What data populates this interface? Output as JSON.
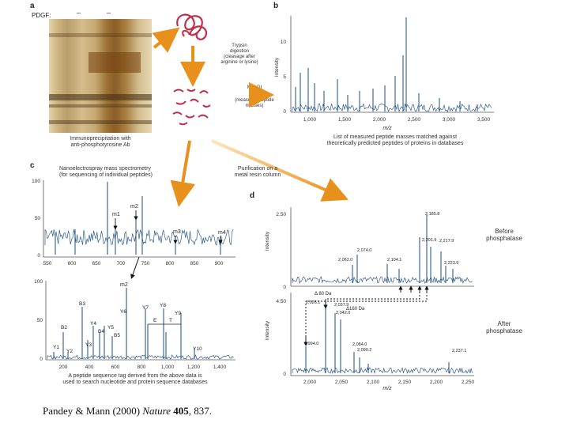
{
  "panel_a": {
    "letter": "a",
    "gel_label": "PDGF:",
    "lane1_sign": "–",
    "lane2_sign": "–",
    "caption_line1": "Immunoprecipitation with",
    "caption_line2": "anti-phosphotyrosine Ab",
    "step_trypsin": [
      "Trypsin",
      "digestion",
      "(cleavage after",
      "arginine or lysine)"
    ],
    "step_maldi_title": "MALDI",
    "step_maldi": [
      "(measures peptide",
      "masses)"
    ]
  },
  "panel_b": {
    "letter": "b",
    "y_ticks": [
      "10",
      "5",
      "0"
    ],
    "x_ticks": [
      "1,000",
      "1,500",
      "2,000",
      "2,500",
      "3,000",
      "3,500"
    ],
    "ylabel": "Intensity",
    "xlabel": "m/z",
    "caption_line1": "List of measured peptide masses matched against",
    "caption_line2": "theoretically predicted peptides of proteins in databases"
  },
  "panel_c": {
    "letter": "c",
    "nano_line1": "Nanoelectrospray mass spectrometry",
    "nano_line2": "(for sequencing of individual peptides)",
    "top_y_ticks": [
      "100",
      "50",
      "0"
    ],
    "top_x_ticks": [
      "550",
      "600",
      "650",
      "700",
      "750",
      "800",
      "850",
      "900"
    ],
    "top_markers": [
      "m1",
      "m2",
      "m3",
      "m4"
    ],
    "bottom_y_ticks": [
      "100",
      "50",
      "0"
    ],
    "bottom_x_ticks": [
      "200",
      "400",
      "600",
      "800",
      "1,000",
      "1,200",
      "1,400"
    ],
    "bottom_marker": "m2",
    "ion_labels": [
      "B3",
      "Y6",
      "Y7",
      "Y8",
      "Y9",
      "B2",
      "Y4",
      "B4",
      "Y5",
      "B5",
      "Y3",
      "Y1",
      "Y2",
      "Y10",
      "E",
      "T"
    ],
    "caption_line1": "A peptide sequence tag derived from the above data is",
    "caption_line2": "used to search nucleotide and protein sequence databases"
  },
  "purification": [
    "Purification on a",
    "metal resin column"
  ],
  "panel_d": {
    "letter": "d",
    "top_y_ticks": [
      "2.50",
      "0"
    ],
    "bottom_y_ticks": [
      "4.50",
      "0"
    ],
    "ylabel": "Intensity",
    "x_ticks": [
      "2,000",
      "2,050",
      "2,100",
      "2,150",
      "2,200",
      "2,250"
    ],
    "xlabel": "m/z",
    "before_line1": "Before",
    "before_line2": "phosphatase",
    "after_line1": "After",
    "after_line2": "phosphatase",
    "top_peaks": [
      "2,185.8",
      "2,201.9",
      "2,217.9",
      "2,074.0",
      "2,104.1",
      "2,062.0",
      "2,223.9"
    ],
    "delta1": "Δ 80 Da",
    "delta2": "Δ160 Da",
    "bottom_peaks": [
      "2,026.1",
      "2,037.9",
      "2,042.0",
      "1,994.0",
      "2,084.0",
      "2,090.2",
      "2,237.1"
    ]
  },
  "citation": {
    "authors": "Pandey & Mann (2000) ",
    "journal": "Nature",
    "volume": "405",
    "pages": ", 837."
  }
}
